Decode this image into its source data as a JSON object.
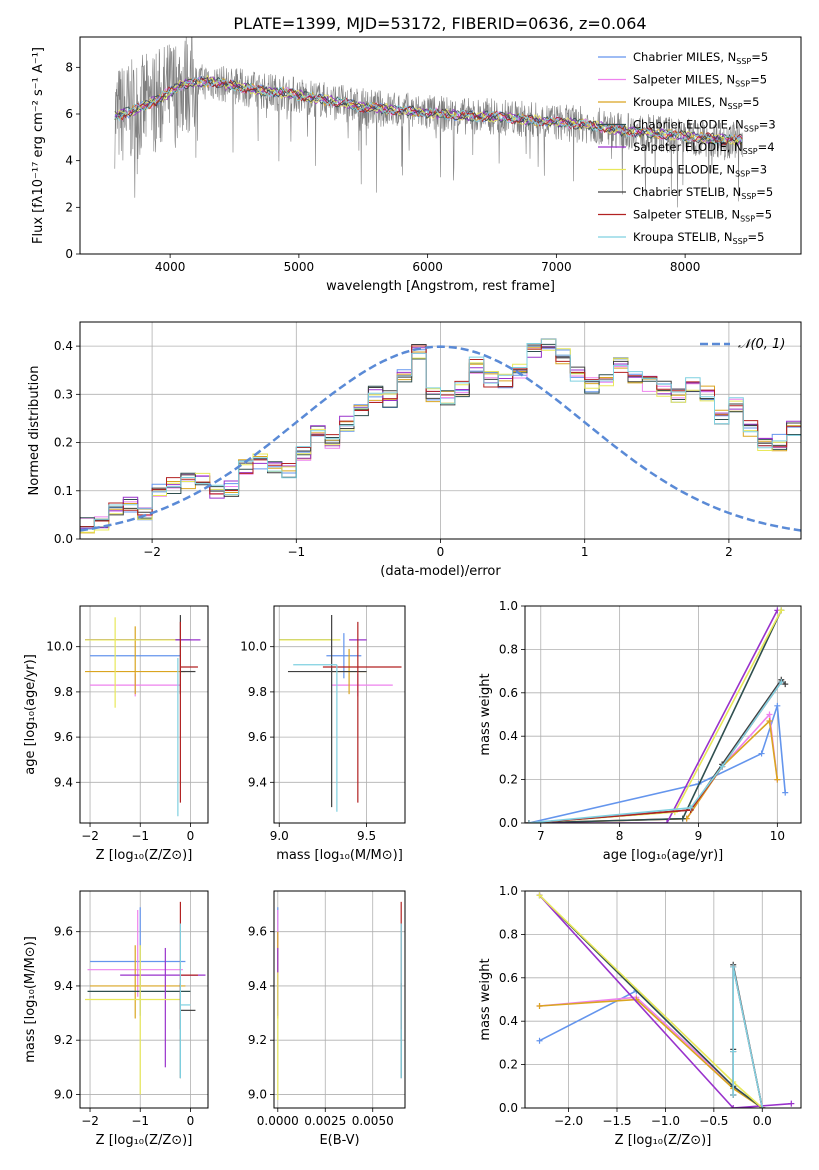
{
  "page_title": "PLATE=1399, MJD=53172, FIBERID=0636, z=0.064",
  "series_colors": [
    "#6495ed",
    "#ee82ee",
    "#daa520",
    "#2f4f4f",
    "#9932cc",
    "#e8e85a",
    "#404040",
    "#b22222",
    "#7fd0e0"
  ],
  "chart_data": [
    {
      "id": "spectrum",
      "type": "line",
      "title": "PLATE=1399, MJD=53172, FIBERID=0636, z=0.064",
      "xlabel": "wavelength [Angstrom, rest frame]",
      "ylabel": "Flux [fλ10⁻¹⁷ erg cm⁻² s⁻¹ A⁻¹]",
      "xlim": [
        3300,
        8900
      ],
      "ylim": [
        0,
        9.3
      ],
      "xticks": [
        4000,
        5000,
        6000,
        7000,
        8000
      ],
      "yticks": [
        0,
        2,
        4,
        6,
        8
      ],
      "grid": false,
      "legend_placement": "top-right",
      "data_range": [
        3570,
        8450
      ],
      "continuum": {
        "x": [
          3570,
          3700,
          3900,
          4100,
          4300,
          4500,
          4700,
          4900,
          5100,
          5300,
          5500,
          5700,
          5900,
          6100,
          6300,
          6500,
          6700,
          6900,
          7100,
          7300,
          7500,
          7700,
          7900,
          8100,
          8300,
          8450
        ],
        "y": [
          5.9,
          6.1,
          6.6,
          7.3,
          7.4,
          7.2,
          7.0,
          6.9,
          6.7,
          6.5,
          6.3,
          6.2,
          6.1,
          6.0,
          5.9,
          5.9,
          5.8,
          5.7,
          5.6,
          5.5,
          5.3,
          5.2,
          5.1,
          5.0,
          4.9,
          4.9
        ]
      },
      "legend": [
        {
          "label": "Chabrier MILES, N",
          "sub": "SSP",
          "suffix": "=5"
        },
        {
          "label": "Salpeter MILES, N",
          "sub": "SSP",
          "suffix": "=5"
        },
        {
          "label": "Kroupa MILES, N",
          "sub": "SSP",
          "suffix": "=5"
        },
        {
          "label": "Chabrier ELODIE, N",
          "sub": "SSP",
          "suffix": "=3"
        },
        {
          "label": "Salpeter ELODIE, N",
          "sub": "SSP",
          "suffix": "=4"
        },
        {
          "label": "Kroupa ELODIE, N",
          "sub": "SSP",
          "suffix": "=3"
        },
        {
          "label": "Chabrier STELIB, N",
          "sub": "SSP",
          "suffix": "=5"
        },
        {
          "label": "Salpeter STELIB, N",
          "sub": "SSP",
          "suffix": "=5"
        },
        {
          "label": "Kroupa STELIB, N",
          "sub": "SSP",
          "suffix": "=5"
        }
      ]
    },
    {
      "id": "residuals",
      "type": "histogram",
      "xlabel": "(data-model)/error",
      "ylabel": "Normed distribution",
      "xlim": [
        -2.5,
        2.5
      ],
      "ylim": [
        0,
        0.45
      ],
      "xticks": [
        -2,
        -1,
        0,
        1,
        2
      ],
      "yticks": [
        0.0,
        0.1,
        0.2,
        0.3,
        0.4
      ],
      "grid": true,
      "legend_placement": "top-right",
      "legend_label": "𝒩(0, 1)",
      "bin_width": 0.1,
      "bins_start": -2.5,
      "base_values": [
        0.028,
        0.034,
        0.06,
        0.07,
        0.05,
        0.1,
        0.11,
        0.12,
        0.13,
        0.1,
        0.105,
        0.15,
        0.16,
        0.15,
        0.14,
        0.18,
        0.22,
        0.2,
        0.24,
        0.27,
        0.3,
        0.29,
        0.34,
        0.39,
        0.3,
        0.29,
        0.31,
        0.36,
        0.33,
        0.33,
        0.35,
        0.39,
        0.4,
        0.38,
        0.34,
        0.32,
        0.33,
        0.36,
        0.33,
        0.32,
        0.31,
        0.3,
        0.32,
        0.3,
        0.25,
        0.28,
        0.23,
        0.2,
        0.2,
        0.23,
        0.2,
        0.17,
        0.15,
        0.17,
        0.11,
        0.1,
        0.08,
        0.07,
        0.06,
        0.05,
        0.04,
        0.04,
        0.035,
        0.03,
        0.03
      ],
      "gaussian": {
        "mu": 0,
        "sigma": 1
      }
    },
    {
      "id": "age-vs-z",
      "type": "errorbar",
      "xlabel": "Z [log₁₀(Z/Z⊙)]",
      "ylabel": "age  [log₁₀(age/yr)]",
      "xlim": [
        -2.2,
        0.35
      ],
      "ylim": [
        9.22,
        10.18
      ],
      "xticks": [
        -2,
        -1,
        0
      ],
      "yticks": [
        9.4,
        9.6,
        9.8,
        10.0
      ],
      "grid": true,
      "points": [
        {
          "x": -1.0,
          "y": 9.96,
          "xerr": [
            1.0,
            0.8
          ],
          "yerr": [
            0.0,
            0.0
          ]
        },
        {
          "x": -1.1,
          "y": 9.83,
          "xerr": [
            0.9,
            0.9
          ],
          "yerr": [
            0.05,
            0.05
          ]
        },
        {
          "x": -1.1,
          "y": 9.89,
          "xerr": [
            1.0,
            1.0
          ],
          "yerr": [
            0.1,
            0.2
          ]
        },
        {
          "x": -1.0,
          "y": 10.03,
          "xerr": [
            1.1,
            1.0
          ],
          "yerr": [
            0.0,
            0.0
          ]
        },
        {
          "x": -0.7,
          "y": 10.03,
          "xerr": [
            1.4,
            0.9
          ],
          "yerr": [
            0.0,
            0.0
          ]
        },
        {
          "x": -1.5,
          "y": 10.03,
          "xerr": [
            0.6,
            1.2
          ],
          "yerr": [
            0.3,
            0.1
          ]
        },
        {
          "x": -0.2,
          "y": 9.89,
          "xerr": [
            0.0,
            0.3
          ],
          "yerr": [
            0.1,
            0.25
          ]
        },
        {
          "x": -0.2,
          "y": 9.91,
          "xerr": [
            0.0,
            0.35
          ],
          "yerr": [
            0.6,
            0.2
          ]
        },
        {
          "x": -0.25,
          "y": 9.95,
          "xerr": [
            0.0,
            0.0
          ],
          "yerr": [
            0.7,
            0.0
          ]
        }
      ]
    },
    {
      "id": "age-vs-mass",
      "type": "errorbar",
      "xlabel": "mass [log₁₀(M/M⊙)]",
      "ylabel": "",
      "xlim": [
        8.97,
        9.72
      ],
      "ylim": [
        9.22,
        10.18
      ],
      "xticks": [
        9.0,
        9.5
      ],
      "yticks": [
        9.4,
        9.6,
        9.8,
        10.0
      ],
      "grid": true,
      "points": [
        {
          "x": 9.37,
          "y": 9.96,
          "xerr": [
            0.1,
            0.1
          ],
          "yerr": [
            0.1,
            0.1
          ]
        },
        {
          "x": 9.45,
          "y": 9.83,
          "xerr": [
            0.15,
            0.2
          ],
          "yerr": [
            0.05,
            0.05
          ]
        },
        {
          "x": 9.4,
          "y": 9.89,
          "xerr": [
            0.1,
            0.1
          ],
          "yerr": [
            0.1,
            0.1
          ]
        },
        {
          "x": 9.2,
          "y": 10.03,
          "xerr": [
            0.2,
            0.1
          ],
          "yerr": [
            0.0,
            0.0
          ]
        },
        {
          "x": 9.45,
          "y": 10.03,
          "xerr": [
            0.05,
            0.05
          ],
          "yerr": [
            0.0,
            0.0
          ]
        },
        {
          "x": 9.2,
          "y": 10.03,
          "xerr": [
            0.2,
            0.15
          ],
          "yerr": [
            0.0,
            0.0
          ]
        },
        {
          "x": 9.3,
          "y": 9.89,
          "xerr": [
            0.25,
            0.2
          ],
          "yerr": [
            0.6,
            0.25
          ]
        },
        {
          "x": 9.45,
          "y": 9.91,
          "xerr": [
            0.2,
            0.25
          ],
          "yerr": [
            0.6,
            0.2
          ]
        },
        {
          "x": 9.33,
          "y": 9.92,
          "xerr": [
            0.25,
            0.0
          ],
          "yerr": [
            0.65,
            0.0
          ]
        }
      ]
    },
    {
      "id": "weight-vs-age",
      "type": "line",
      "xlabel": "age  [log₁₀(age/yr)]",
      "ylabel": "mass weight",
      "xlim": [
        6.8,
        10.3
      ],
      "ylim": [
        0,
        1.0
      ],
      "xticks": [
        7,
        8,
        9,
        10
      ],
      "yticks": [
        0.0,
        0.2,
        0.4,
        0.6,
        0.8,
        1.0
      ],
      "grid": true,
      "series": [
        {
          "x": [
            6.85,
            9.0,
            9.8,
            10.0,
            10.1
          ],
          "y": [
            0.0,
            0.18,
            0.32,
            0.54,
            0.14
          ]
        },
        {
          "x": [
            6.85,
            8.85,
            9.3,
            9.9,
            10.0
          ],
          "y": [
            0.0,
            0.02,
            0.26,
            0.5,
            0.2
          ]
        },
        {
          "x": [
            6.85,
            8.85,
            9.3,
            9.9,
            10.0
          ],
          "y": [
            0.0,
            0.02,
            0.26,
            0.47,
            0.2
          ]
        },
        {
          "x": [
            6.85,
            8.8,
            10.05
          ],
          "y": [
            0.0,
            0.02,
            0.98
          ]
        },
        {
          "x": [
            6.85,
            8.6,
            10.0
          ],
          "y": [
            0.0,
            0.0,
            0.98
          ]
        },
        {
          "x": [
            6.85,
            8.7,
            10.05
          ],
          "y": [
            0.0,
            0.05,
            0.98
          ]
        },
        {
          "x": [
            6.85,
            8.9,
            9.3,
            10.05,
            10.1
          ],
          "y": [
            0.0,
            0.06,
            0.27,
            0.66,
            0.64
          ]
        },
        {
          "x": [
            6.85,
            8.9,
            9.3,
            10.05
          ],
          "y": [
            0.0,
            0.06,
            0.26,
            0.65
          ]
        },
        {
          "x": [
            6.85,
            8.9,
            9.3,
            10.05
          ],
          "y": [
            0.0,
            0.07,
            0.26,
            0.65
          ]
        }
      ]
    },
    {
      "id": "mass-vs-z",
      "type": "errorbar",
      "xlabel": "Z [log₁₀(Z/Z⊙)]",
      "ylabel": "mass [log₁₀(M/M⊙)]",
      "xlim": [
        -2.2,
        0.35
      ],
      "ylim": [
        8.95,
        9.75
      ],
      "xticks": [
        -2,
        -1,
        0
      ],
      "yticks": [
        9.0,
        9.2,
        9.4,
        9.6
      ],
      "grid": true,
      "points": [
        {
          "x": -1.0,
          "y": 9.49,
          "xerr": [
            1.0,
            0.9
          ],
          "yerr": [
            0.2,
            0.2
          ]
        },
        {
          "x": -1.05,
          "y": 9.46,
          "xerr": [
            1.0,
            0.9
          ],
          "yerr": [
            0.1,
            0.22
          ]
        },
        {
          "x": -1.1,
          "y": 9.4,
          "xerr": [
            0.9,
            1.0
          ],
          "yerr": [
            0.12,
            0.15
          ]
        },
        {
          "x": -1.0,
          "y": 9.38,
          "xerr": [
            1.05,
            1.0
          ],
          "yerr": [
            0.0,
            0.0
          ]
        },
        {
          "x": -0.5,
          "y": 9.44,
          "xerr": [
            0.9,
            0.8
          ],
          "yerr": [
            0.34,
            0.1
          ]
        },
        {
          "x": -1.0,
          "y": 9.35,
          "xerr": [
            1.1,
            0.8
          ],
          "yerr": [
            0.35,
            0.2
          ]
        },
        {
          "x": -0.2,
          "y": 9.31,
          "xerr": [
            0.0,
            0.3
          ],
          "yerr": [
            0.25,
            0.1
          ]
        },
        {
          "x": -0.2,
          "y": 9.44,
          "xerr": [
            0.0,
            0.35
          ],
          "yerr": [
            0.2,
            0.27
          ]
        },
        {
          "x": -0.2,
          "y": 9.33,
          "xerr": [
            0.0,
            0.2
          ],
          "yerr": [
            0.27,
            0.3
          ]
        }
      ]
    },
    {
      "id": "mass-vs-ebv",
      "type": "errorbar",
      "xlabel": "E(B-V)",
      "ylabel": "",
      "xlim": [
        -0.0002,
        0.0067
      ],
      "xticklabels": [
        "0.0000",
        "0.0025",
        "0.0050"
      ],
      "xticks": [
        0.0,
        0.0025,
        0.005
      ],
      "ylim": [
        8.95,
        9.75
      ],
      "yticks": [
        9.0,
        9.2,
        9.4,
        9.6
      ],
      "grid": true,
      "points": [
        {
          "x": 0.0,
          "y": 9.49,
          "xerr": [
            0,
            0
          ],
          "yerr": [
            0.2,
            0.2
          ]
        },
        {
          "x": 0.0,
          "y": 9.46,
          "xerr": [
            0,
            0
          ],
          "yerr": [
            0.1,
            0.22
          ]
        },
        {
          "x": 0.0,
          "y": 9.4,
          "xerr": [
            0,
            0
          ],
          "yerr": [
            0.12,
            0.2
          ]
        },
        {
          "x": 0.0,
          "y": 9.38,
          "xerr": [
            0,
            0
          ],
          "yerr": [
            0.0,
            0.0
          ]
        },
        {
          "x": 0.0,
          "y": 9.44,
          "xerr": [
            0,
            0
          ],
          "yerr": [
            0.15,
            0.1
          ]
        },
        {
          "x": 0.0,
          "y": 9.35,
          "xerr": [
            0,
            0
          ],
          "yerr": [
            0.37,
            0.1
          ]
        },
        {
          "x": 0.0065,
          "y": 9.31,
          "xerr": [
            0,
            0
          ],
          "yerr": [
            0.25,
            0.1
          ]
        },
        {
          "x": 0.0065,
          "y": 9.44,
          "xerr": [
            0,
            0
          ],
          "yerr": [
            0.2,
            0.27
          ]
        },
        {
          "x": 0.0065,
          "y": 9.33,
          "xerr": [
            0,
            0
          ],
          "yerr": [
            0.27,
            0.3
          ]
        }
      ]
    },
    {
      "id": "weight-vs-z",
      "type": "line",
      "xlabel": "Z [log₁₀(Z/Z⊙)]",
      "ylabel": "mass weight",
      "xlim": [
        -2.45,
        0.4
      ],
      "ylim": [
        0,
        1.0
      ],
      "xticks": [
        -2.0,
        -1.5,
        -1.0,
        -0.5,
        0.0
      ],
      "xticklabels": [
        "−2.0",
        "−1.5",
        "−1.0",
        "−0.5",
        "0.0"
      ],
      "yticks": [
        0.0,
        0.2,
        0.4,
        0.6,
        0.8,
        1.0
      ],
      "grid": true,
      "series": [
        {
          "x": [
            -2.3,
            -1.3,
            -0.3,
            0.0
          ],
          "y": [
            0.31,
            0.54,
            0.1,
            0.0
          ]
        },
        {
          "x": [
            -2.3,
            -1.3,
            -0.3,
            0.0
          ],
          "y": [
            0.47,
            0.51,
            0.1,
            0.0
          ]
        },
        {
          "x": [
            -2.3,
            -1.3,
            -0.3,
            0.0
          ],
          "y": [
            0.47,
            0.5,
            0.09,
            0.0
          ]
        },
        {
          "x": [
            -2.3,
            -0.3,
            0.0
          ],
          "y": [
            0.98,
            0.1,
            0.0
          ]
        },
        {
          "x": [
            -2.3,
            -0.3,
            0.3
          ],
          "y": [
            0.98,
            0.0,
            0.02
          ]
        },
        {
          "x": [
            -2.3,
            -0.3,
            0.0
          ],
          "y": [
            0.98,
            0.12,
            0.0
          ]
        },
        {
          "x": [
            -0.3,
            -0.3,
            -0.3,
            0.0
          ],
          "y": [
            0.06,
            0.27,
            0.66,
            0.0
          ]
        },
        {
          "x": [
            -0.3,
            -0.3,
            -0.3,
            0.0
          ],
          "y": [
            0.06,
            0.26,
            0.65,
            0.0
          ]
        },
        {
          "x": [
            -0.3,
            -0.3,
            -0.3,
            0.0
          ],
          "y": [
            0.06,
            0.26,
            0.65,
            0.0
          ]
        }
      ]
    }
  ]
}
